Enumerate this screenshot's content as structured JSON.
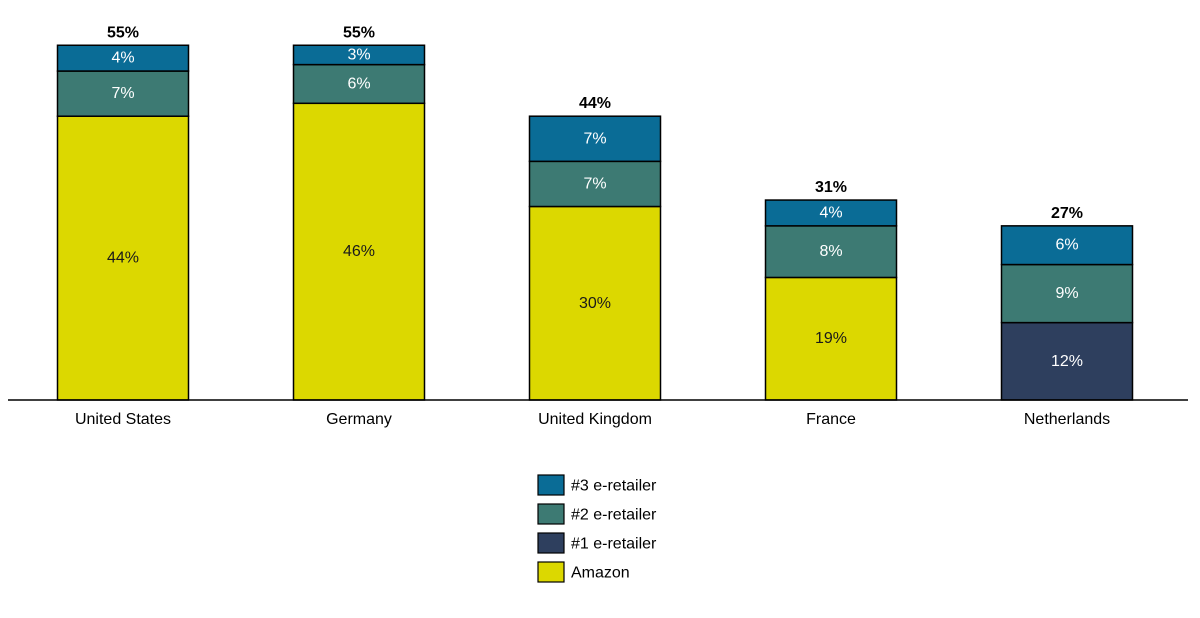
{
  "chart_data": {
    "type": "bar",
    "stacked": true,
    "title": "",
    "xlabel": "",
    "ylabel": "",
    "ylim": [
      0,
      55
    ],
    "grid": false,
    "legend_position": "bottom-center",
    "categories": [
      "United States",
      "Germany",
      "United Kingdom",
      "France",
      "Netherlands"
    ],
    "totals": [
      "55%",
      "55%",
      "44%",
      "31%",
      "27%"
    ],
    "series": [
      {
        "name": "Amazon",
        "color": "#dcd800",
        "text_color": "#1a1a1a",
        "values": [
          44,
          46,
          30,
          19,
          null
        ],
        "labels": [
          "44%",
          "46%",
          "30%",
          "19%",
          ""
        ]
      },
      {
        "name": "#1 e-retailer",
        "color": "#2e3f5e",
        "text_color": "#ffffff",
        "values": [
          null,
          null,
          null,
          null,
          12
        ],
        "labels": [
          "",
          "",
          "",
          "",
          "12%"
        ]
      },
      {
        "name": "#2 e-retailer",
        "color": "#3d7a73",
        "text_color": "#ffffff",
        "values": [
          7,
          6,
          7,
          8,
          9
        ],
        "labels": [
          "7%",
          "6%",
          "7%",
          "8%",
          "9%"
        ]
      },
      {
        "name": "#3 e-retailer",
        "color": "#0a6c96",
        "text_color": "#ffffff",
        "values": [
          4,
          3,
          7,
          4,
          6
        ],
        "labels": [
          "4%",
          "3%",
          "7%",
          "4%",
          "6%"
        ]
      }
    ],
    "legend_order": [
      "#3 e-retailer",
      "#2 e-retailer",
      "#1 e-retailer",
      "Amazon"
    ]
  }
}
